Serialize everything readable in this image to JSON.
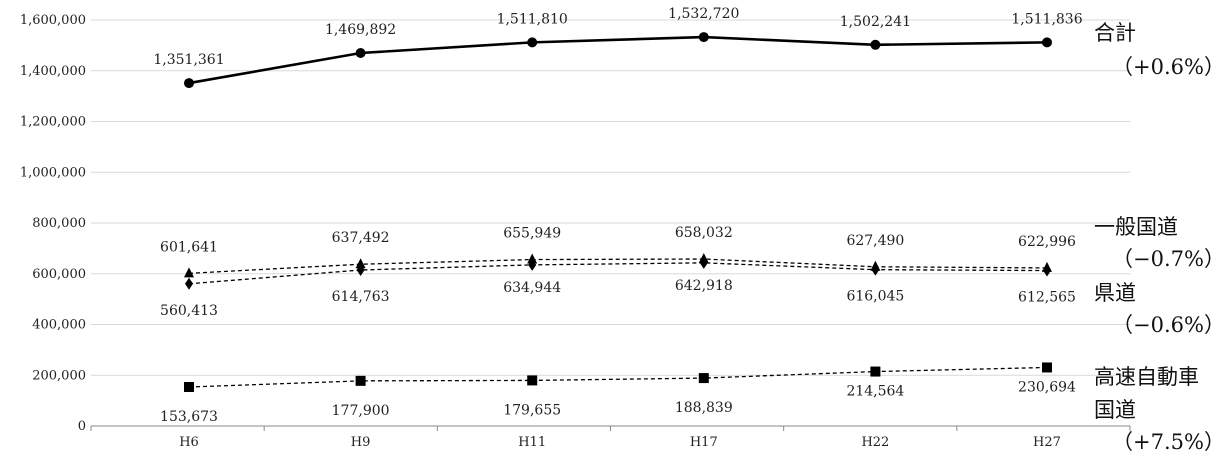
{
  "chart_data": {
    "type": "line",
    "categories": [
      "H6",
      "H9",
      "H11",
      "H17",
      "H22",
      "H27"
    ],
    "ylim": [
      0,
      1600000
    ],
    "yticks": [
      0,
      200000,
      400000,
      600000,
      800000,
      1000000,
      1200000,
      1400000,
      1600000
    ],
    "ytick_labels": [
      "0",
      "200,000",
      "400,000",
      "600,000",
      "800,000",
      "1,000,000",
      "1,200,000",
      "1,400,000",
      "1,600,000"
    ],
    "grid": true,
    "legend": "none",
    "series": [
      {
        "name": "合計",
        "change": "（+0.6%）",
        "values": [
          1351361,
          1469892,
          1511810,
          1532720,
          1502241,
          1511836
        ],
        "labels": [
          "1,351,361",
          "1,469,892",
          "1,511,810",
          "1,532,720",
          "1,502,241",
          "1,511,836"
        ],
        "marker": "circle",
        "line": "solid"
      },
      {
        "name": "一般国道",
        "change": "（−0.7%）",
        "values": [
          601641,
          637492,
          655949,
          658032,
          627490,
          622996
        ],
        "labels": [
          "601,641",
          "637,492",
          "655,949",
          "658,032",
          "627,490",
          "622,996"
        ],
        "marker": "triangle",
        "line": "dashed"
      },
      {
        "name": "県道",
        "change": "（−0.6%）",
        "values": [
          560413,
          614763,
          634944,
          642918,
          616045,
          612565
        ],
        "labels": [
          "560,413",
          "614,763",
          "634,944",
          "642,918",
          "616,045",
          "612,565"
        ],
        "marker": "diamond",
        "line": "dashed"
      },
      {
        "name": "高速自動車国道",
        "name_lines": [
          "高速自動車",
          "国道"
        ],
        "change": "（+7.5%）",
        "values": [
          153673,
          177900,
          179655,
          188839,
          214564,
          230694
        ],
        "labels": [
          "153,673",
          "177,900",
          "179,655",
          "188,839",
          "214,564",
          "230,694"
        ],
        "marker": "square",
        "line": "dashed"
      }
    ]
  }
}
